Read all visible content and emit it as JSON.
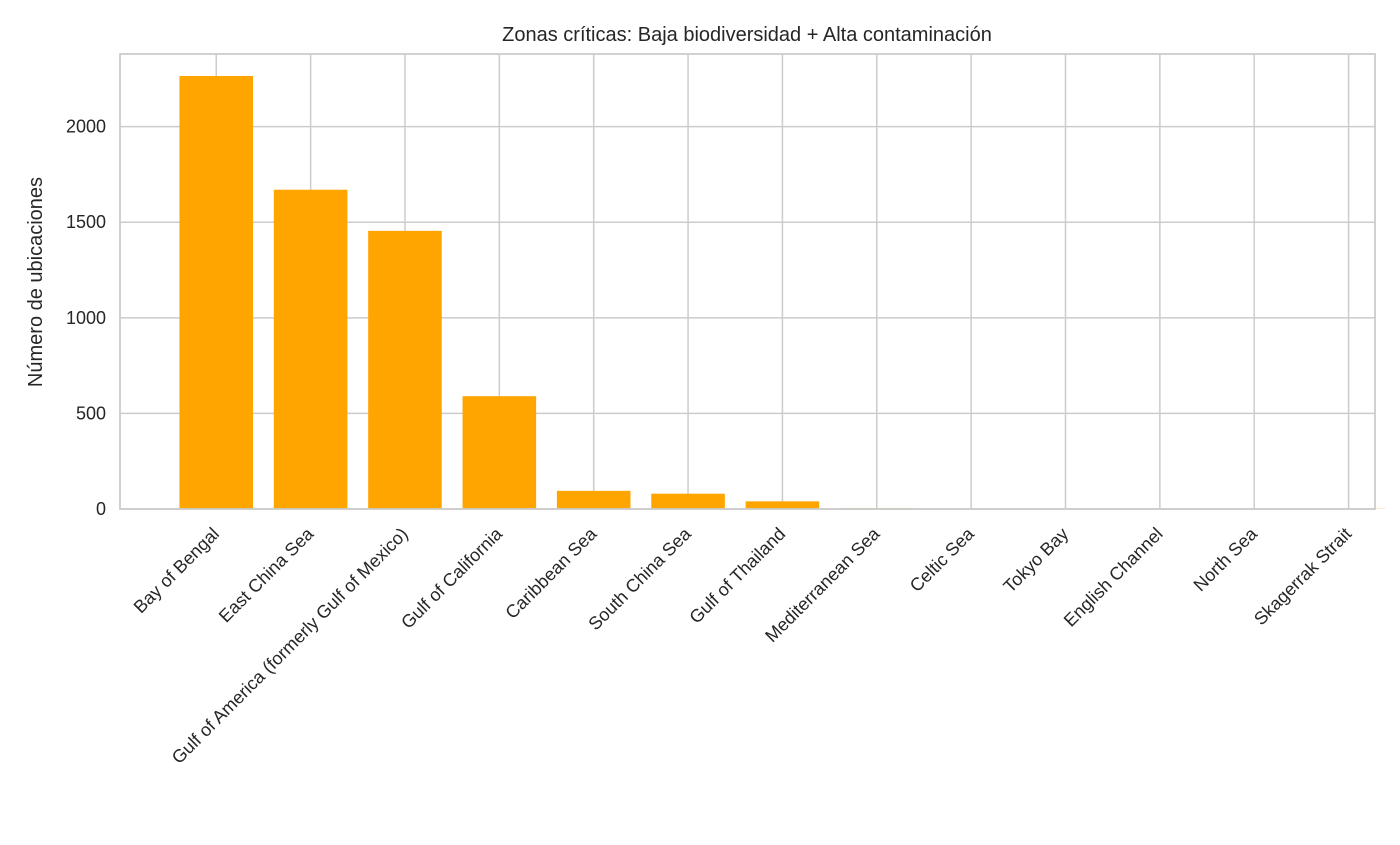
{
  "chart_data": {
    "type": "bar",
    "title": "Zonas críticas: Baja biodiversidad + Alta contaminación",
    "xlabel": "",
    "ylabel": "Número de ubicaciones",
    "categories": [
      "Bay of Bengal",
      "East China Sea",
      "Gulf of America (formerly Gulf of Mexico)",
      "Gulf of California",
      "Caribbean Sea",
      "South China Sea",
      "Gulf of Thailand",
      "Mediterranean Sea",
      "Celtic Sea",
      "Tokyo Bay",
      "English Channel",
      "North Sea",
      "Skagerrak Strait"
    ],
    "values": [
      2265,
      1670,
      1455,
      590,
      95,
      80,
      40,
      4,
      3,
      2,
      2,
      1,
      1
    ],
    "ylim": [
      0,
      2380
    ],
    "yticks": [
      0,
      500,
      1000,
      1500,
      2000
    ],
    "bar_color": "#FFA500",
    "grid": true,
    "legend": "none"
  }
}
